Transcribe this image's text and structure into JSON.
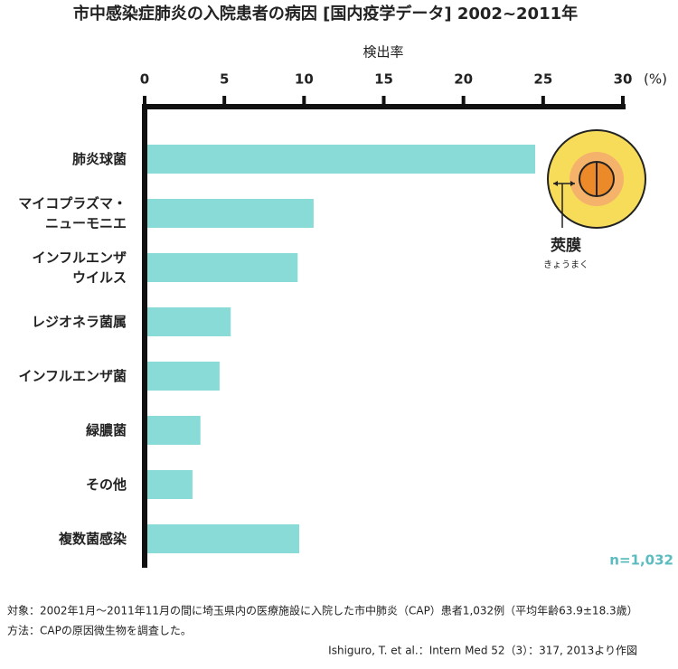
{
  "chart_data": {
    "type": "bar",
    "orientation": "horizontal",
    "title": "市中感染症肺炎の入院患者の病因 [国内疫学データ]  2002~2011年",
    "x_label": "検出率",
    "x_unit": "(%)",
    "categories": [
      "肺炎球菌",
      "マイコプラズマ・\nニューモニエ",
      "インフルエンザ\nウイルス",
      "レジオネラ菌属",
      "インフルエンザ菌",
      "緑膿菌",
      "その他",
      "複数菌感染"
    ],
    "values": [
      24.5,
      10.6,
      9.6,
      5.4,
      4.7,
      3.5,
      3.0,
      9.7
    ],
    "color": "#88dbd6",
    "xlim": [
      0,
      30
    ],
    "xticks": [
      0,
      5,
      10,
      15,
      20,
      25,
      30
    ],
    "annotations": {
      "illustration_label": "莢膜",
      "illustration_reading": "きょうまく",
      "sample_size": "n=1,032"
    },
    "notes": [
      "対象：2002年1月～2011年11月の間に埼玉県内の医療施設に入院した市中肺炎（CAP）患者1,032例（平均年齢63.9±18.3歳）",
      "方法：CAPの原因微生物を調査した。"
    ],
    "source": "Ishiguro, T. et al.：Intern Med 52（3）：317, 2013より作図"
  }
}
